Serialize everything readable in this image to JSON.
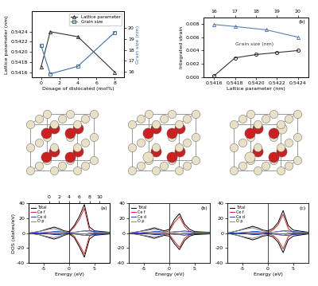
{
  "chart_data": [
    {
      "type": "line",
      "xlabel": "Dosage of dislocated (mol%)",
      "ylabel": "Lattice parameter (nm)",
      "y2label": "Grain size (nm)",
      "x": [
        0,
        1,
        4,
        8
      ],
      "xlim": [
        -1,
        9
      ],
      "xticks": [
        0,
        2,
        4,
        6,
        8
      ],
      "ylim": [
        0.5415,
        0.5428
      ],
      "yticks": [
        0.5416,
        0.5418,
        {
          "value": 0.542,
          "label": "0.5420"
        },
        0.5422,
        0.5424
      ],
      "y2lim": [
        15.5,
        21.5
      ],
      "y2ticks": [
        16,
        17,
        18,
        19,
        20
      ],
      "legend": "upper right",
      "series": [
        {
          "name": "Lattice parameter",
          "color": "#333333",
          "marker": "triangle",
          "line_style": "solid",
          "values": [
            0.5417,
            0.5424,
            0.5423,
            0.5416
          ]
        },
        {
          "name": "Grain size",
          "color": "#3a6fb0",
          "marker": "square",
          "line_style": "solid",
          "axis": "y2",
          "values": [
            18.4,
            15.8,
            16.5,
            19.6
          ]
        }
      ]
    },
    {
      "type": "line",
      "panel_label": "(b)",
      "xlabel": "Lattice parameter (nm)",
      "ylabel": "Integrated strain",
      "annotations": [
        "Grain size (nm)"
      ],
      "xlim": [
        0.5415,
        0.5425
      ],
      "xticks": [
        0.5416,
        0.5418,
        {
          "value": 0.542,
          "label": "0.5420"
        },
        0.5422,
        0.5424
      ],
      "x2lim": [
        15.5,
        20.5
      ],
      "x2ticks": [
        16,
        17,
        18,
        19,
        20
      ],
      "ylim": [
        0,
        0.009
      ],
      "yticks": [
        {
          "value": 0.0,
          "label": "0.000"
        },
        {
          "value": 0.002,
          "label": "0.002"
        },
        {
          "value": 0.004,
          "label": "0.004"
        },
        {
          "value": 0.006,
          "label": "0.006"
        },
        {
          "value": 0.008,
          "label": "0.008"
        }
      ],
      "series": [
        {
          "name": "Lattice parameter",
          "color": "#5b7fb5",
          "marker": "triangle",
          "line_style": "solid",
          "x": [
            0.5416,
            0.5418,
            0.5421,
            0.5424
          ],
          "values": [
            0.0079,
            0.0076,
            0.0071,
            0.006
          ]
        },
        {
          "name": "Grain size",
          "color": "#333333",
          "marker": "circle",
          "line_style": "solid",
          "axis": "x2",
          "x": [
            16,
            17,
            18,
            19,
            20
          ],
          "values": [
            0.0002,
            0.0029,
            0.0034,
            0.0037,
            0.004
          ]
        }
      ]
    },
    {
      "type": "line",
      "panel_label": "(a)",
      "xlabel": "Energy (eV)",
      "ylabel": "DOS (states/eV)",
      "x": [
        -8,
        -6,
        -4,
        -3,
        -2,
        -1,
        0,
        1,
        2,
        3,
        4,
        5,
        8
      ],
      "xlim": [
        -8,
        8
      ],
      "xticks": [
        -5,
        0,
        5
      ],
      "x2lim": [
        -4,
        12
      ],
      "x2ticks": [
        0,
        2,
        4,
        6,
        8,
        10
      ],
      "ylim": [
        -40,
        40
      ],
      "yticks": [
        -40,
        -20,
        0,
        20,
        40
      ],
      "legend": "upper left",
      "series": [
        {
          "name": "Total",
          "color": "#000000",
          "values": [
            0,
            2,
            6,
            8,
            6,
            3,
            2,
            10,
            22,
            38,
            8,
            3,
            1
          ],
          "values_down": [
            0,
            -2,
            -6,
            -8,
            -6,
            -3,
            -1,
            -6,
            -18,
            -32,
            -8,
            -3,
            -1
          ]
        },
        {
          "name": "Ce f",
          "color": "#dd2222",
          "values": [
            0,
            0,
            1,
            1,
            1,
            1,
            1,
            8,
            18,
            33,
            4,
            1,
            0
          ],
          "values_down": [
            0,
            0,
            -1,
            -1,
            -1,
            -1,
            0,
            -4,
            -15,
            -28,
            -4,
            -1,
            0
          ]
        },
        {
          "name": "Ce d",
          "color": "#2244cc",
          "values": [
            0,
            0,
            1,
            2,
            2,
            1,
            0,
            1,
            2,
            3,
            3,
            2,
            1
          ],
          "values_down": [
            0,
            0,
            -1,
            -2,
            -2,
            -1,
            0,
            -1,
            -2,
            -3,
            -3,
            -2,
            -1
          ]
        },
        {
          "name": "O p",
          "color": "#888888",
          "values": [
            0,
            2,
            5,
            6,
            4,
            2,
            1,
            1,
            2,
            3,
            1,
            0,
            0
          ],
          "values_down": [
            0,
            -2,
            -5,
            -6,
            -4,
            -2,
            -1,
            -1,
            -2,
            -3,
            -1,
            0,
            0
          ]
        }
      ]
    },
    {
      "type": "line",
      "panel_label": "(b)",
      "xlabel": "Energy (eV)",
      "x": [
        -8,
        -6,
        -4,
        -3,
        -2,
        -1,
        0,
        1,
        2,
        3,
        4,
        5,
        8
      ],
      "xlim": [
        -8,
        8
      ],
      "xticks": [
        -5,
        0,
        5
      ],
      "ylim": [
        -40,
        40
      ],
      "yticks": [
        -40,
        -20,
        0,
        20,
        40
      ],
      "legend": "upper left",
      "series": [
        {
          "name": "Total",
          "color": "#000000",
          "values": [
            0,
            2,
            5,
            7,
            5,
            3,
            5,
            18,
            26,
            12,
            5,
            2,
            1
          ],
          "values_down": [
            0,
            -2,
            -5,
            -7,
            -5,
            -3,
            -4,
            -14,
            -22,
            -10,
            -4,
            -2,
            -1
          ]
        },
        {
          "name": "Ce f",
          "color": "#dd2222",
          "values": [
            0,
            0,
            1,
            1,
            1,
            1,
            3,
            14,
            22,
            9,
            2,
            1,
            0
          ],
          "values_down": [
            0,
            0,
            -1,
            -1,
            -1,
            -1,
            -2,
            -11,
            -19,
            -7,
            -2,
            -1,
            0
          ]
        },
        {
          "name": "Ce d",
          "color": "#2244cc",
          "values": [
            0,
            0,
            1,
            2,
            2,
            1,
            1,
            1,
            2,
            3,
            2,
            1,
            1
          ],
          "values_down": [
            0,
            0,
            -1,
            -2,
            -2,
            -1,
            -1,
            -1,
            -2,
            -3,
            -2,
            -1,
            -1
          ]
        },
        {
          "name": "O p",
          "color": "#888888",
          "values": [
            0,
            2,
            4,
            5,
            4,
            2,
            1,
            2,
            2,
            1,
            1,
            0,
            0
          ],
          "values_down": [
            0,
            -2,
            -4,
            -5,
            -4,
            -2,
            -1,
            -2,
            -2,
            -1,
            -1,
            0,
            0
          ]
        }
      ]
    },
    {
      "type": "line",
      "panel_label": "(c)",
      "xlabel": "Energy (eV)",
      "x": [
        -8,
        -6,
        -4,
        -3,
        -2,
        -1,
        0,
        1,
        2,
        3,
        4,
        5,
        8
      ],
      "xlim": [
        -8,
        8
      ],
      "xticks": [
        -5,
        0,
        5
      ],
      "ylim": [
        -40,
        40
      ],
      "yticks": [
        -40,
        -20,
        0,
        20,
        40
      ],
      "legend": "upper left",
      "series": [
        {
          "name": "Total",
          "color": "#000000",
          "values": [
            0,
            3,
            7,
            9,
            7,
            4,
            3,
            6,
            14,
            30,
            10,
            4,
            1
          ],
          "values_down": [
            0,
            -3,
            -7,
            -9,
            -7,
            -4,
            -3,
            -5,
            -12,
            -26,
            -9,
            -4,
            -1
          ]
        },
        {
          "name": "Ce f",
          "color": "#dd2222",
          "values": [
            0,
            0,
            1,
            1,
            1,
            1,
            1,
            4,
            11,
            25,
            6,
            1,
            0
          ],
          "values_down": [
            0,
            0,
            -1,
            -1,
            -1,
            -1,
            -1,
            -3,
            -9,
            -21,
            -5,
            -1,
            0
          ]
        },
        {
          "name": "Ce d",
          "color": "#2244cc",
          "values": [
            0,
            0,
            1,
            2,
            2,
            1,
            0,
            1,
            2,
            3,
            3,
            2,
            1
          ],
          "values_down": [
            0,
            0,
            -1,
            -2,
            -2,
            -1,
            0,
            -1,
            -2,
            -3,
            -3,
            -2,
            -1
          ]
        },
        {
          "name": "O p",
          "color": "#888888",
          "values": [
            0,
            3,
            6,
            7,
            5,
            3,
            2,
            1,
            2,
            3,
            1,
            0,
            0
          ],
          "values_down": [
            0,
            -3,
            -6,
            -7,
            -5,
            -3,
            -2,
            -1,
            -2,
            -3,
            -1,
            0,
            0
          ]
        }
      ]
    }
  ]
}
